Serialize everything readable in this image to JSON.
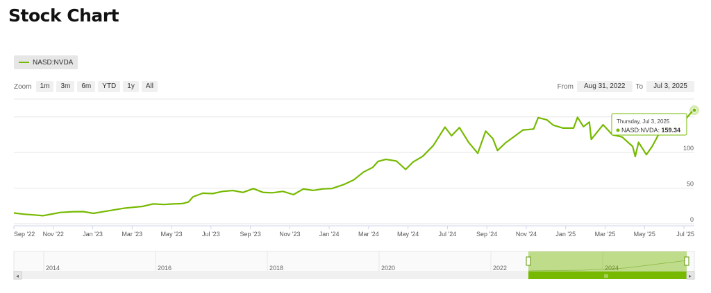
{
  "page": {
    "title": "Stock Chart"
  },
  "legend": {
    "series_label": "NASD:NVDA",
    "color": "#76b900"
  },
  "zoom": {
    "label": "Zoom",
    "buttons": [
      "1m",
      "3m",
      "6m",
      "YTD",
      "1y",
      "All"
    ]
  },
  "range": {
    "from_label": "From",
    "from_value": "Aug 31, 2022",
    "to_label": "To",
    "to_value": "Jul 3, 2025"
  },
  "tooltip": {
    "date": "Thursday, Jul 3, 2025",
    "series": "NASD:NVDA",
    "value": "159.34"
  },
  "chart_data": {
    "type": "line",
    "series": [
      {
        "name": "NASD:NVDA",
        "color": "#76b900"
      }
    ],
    "x_tick_labels": [
      "Sep '22",
      "Nov '22",
      "Jan '23",
      "Mar '23",
      "May '23",
      "Jul '23",
      "Sep '23",
      "Nov '23",
      "Jan '24",
      "Mar '24",
      "May '24",
      "Jul '24",
      "Sep '24",
      "Nov '24",
      "Jan '25",
      "Mar '25",
      "May '25",
      "Jul '25"
    ],
    "y_tick_labels": [
      "0",
      "50",
      "100"
    ],
    "ylim": [
      0,
      175
    ],
    "xlim": [
      "2022-08-31",
      "2025-07-03"
    ],
    "grid": true,
    "points": [
      [
        "2022-08-31",
        15.1
      ],
      [
        "2022-09-15",
        13.4
      ],
      [
        "2022-10-01",
        12.3
      ],
      [
        "2022-10-14",
        11.3
      ],
      [
        "2022-10-28",
        13.6
      ],
      [
        "2022-11-10",
        15.8
      ],
      [
        "2022-11-30",
        16.9
      ],
      [
        "2022-12-15",
        17.0
      ],
      [
        "2022-12-30",
        14.6
      ],
      [
        "2023-01-12",
        16.6
      ],
      [
        "2023-01-31",
        19.5
      ],
      [
        "2023-02-15",
        21.8
      ],
      [
        "2023-02-28",
        23.0
      ],
      [
        "2023-03-15",
        24.3
      ],
      [
        "2023-03-31",
        27.8
      ],
      [
        "2023-04-17",
        27.0
      ],
      [
        "2023-04-28",
        27.7
      ],
      [
        "2023-05-15",
        28.3
      ],
      [
        "2023-05-24",
        30.5
      ],
      [
        "2023-05-31",
        37.8
      ],
      [
        "2023-06-15",
        42.9
      ],
      [
        "2023-06-30",
        42.3
      ],
      [
        "2023-07-15",
        45.4
      ],
      [
        "2023-07-31",
        46.7
      ],
      [
        "2023-08-15",
        43.9
      ],
      [
        "2023-08-31",
        49.3
      ],
      [
        "2023-09-15",
        43.9
      ],
      [
        "2023-09-29",
        43.5
      ],
      [
        "2023-10-15",
        45.4
      ],
      [
        "2023-10-31",
        40.8
      ],
      [
        "2023-11-15",
        48.8
      ],
      [
        "2023-11-30",
        46.8
      ],
      [
        "2023-12-15",
        48.9
      ],
      [
        "2023-12-29",
        49.5
      ],
      [
        "2024-01-15",
        54.7
      ],
      [
        "2024-01-31",
        61.5
      ],
      [
        "2024-02-15",
        72.6
      ],
      [
        "2024-02-29",
        79.1
      ],
      [
        "2024-03-08",
        87.5
      ],
      [
        "2024-03-20",
        90.3
      ],
      [
        "2024-04-05",
        88.0
      ],
      [
        "2024-04-19",
        76.2
      ],
      [
        "2024-04-30",
        86.4
      ],
      [
        "2024-05-15",
        94.6
      ],
      [
        "2024-05-31",
        109.6
      ],
      [
        "2024-06-18",
        135.6
      ],
      [
        "2024-06-28",
        123.5
      ],
      [
        "2024-07-10",
        134.9
      ],
      [
        "2024-07-24",
        114.3
      ],
      [
        "2024-08-07",
        98.9
      ],
      [
        "2024-08-19",
        130.0
      ],
      [
        "2024-08-30",
        119.4
      ],
      [
        "2024-09-06",
        102.8
      ],
      [
        "2024-09-18",
        113.4
      ],
      [
        "2024-09-30",
        121.4
      ],
      [
        "2024-10-15",
        131.6
      ],
      [
        "2024-10-31",
        132.8
      ],
      [
        "2024-11-07",
        148.9
      ],
      [
        "2024-11-20",
        145.9
      ],
      [
        "2024-11-30",
        138.3
      ],
      [
        "2024-12-15",
        134.3
      ],
      [
        "2024-12-31",
        134.3
      ],
      [
        "2025-01-06",
        149.4
      ],
      [
        "2025-01-15",
        136.2
      ],
      [
        "2025-01-24",
        142.6
      ],
      [
        "2025-01-27",
        118.4
      ],
      [
        "2025-02-14",
        138.9
      ],
      [
        "2025-02-28",
        124.9
      ],
      [
        "2025-03-15",
        121.7
      ],
      [
        "2025-03-31",
        108.4
      ],
      [
        "2025-04-04",
        94.3
      ],
      [
        "2025-04-09",
        114.3
      ],
      [
        "2025-04-21",
        96.9
      ],
      [
        "2025-04-30",
        108.9
      ],
      [
        "2025-05-15",
        134.8
      ],
      [
        "2025-05-30",
        135.1
      ],
      [
        "2025-06-15",
        141.9
      ],
      [
        "2025-06-30",
        157.9
      ],
      [
        "2025-07-03",
        159.3
      ]
    ]
  },
  "navigator": {
    "year_labels": [
      "2014",
      "2016",
      "2018",
      "2020",
      "2022",
      "2024"
    ],
    "scroll_handle_glyph": "III",
    "left_arrow_glyph": "◂",
    "right_arrow_glyph": "▸"
  }
}
